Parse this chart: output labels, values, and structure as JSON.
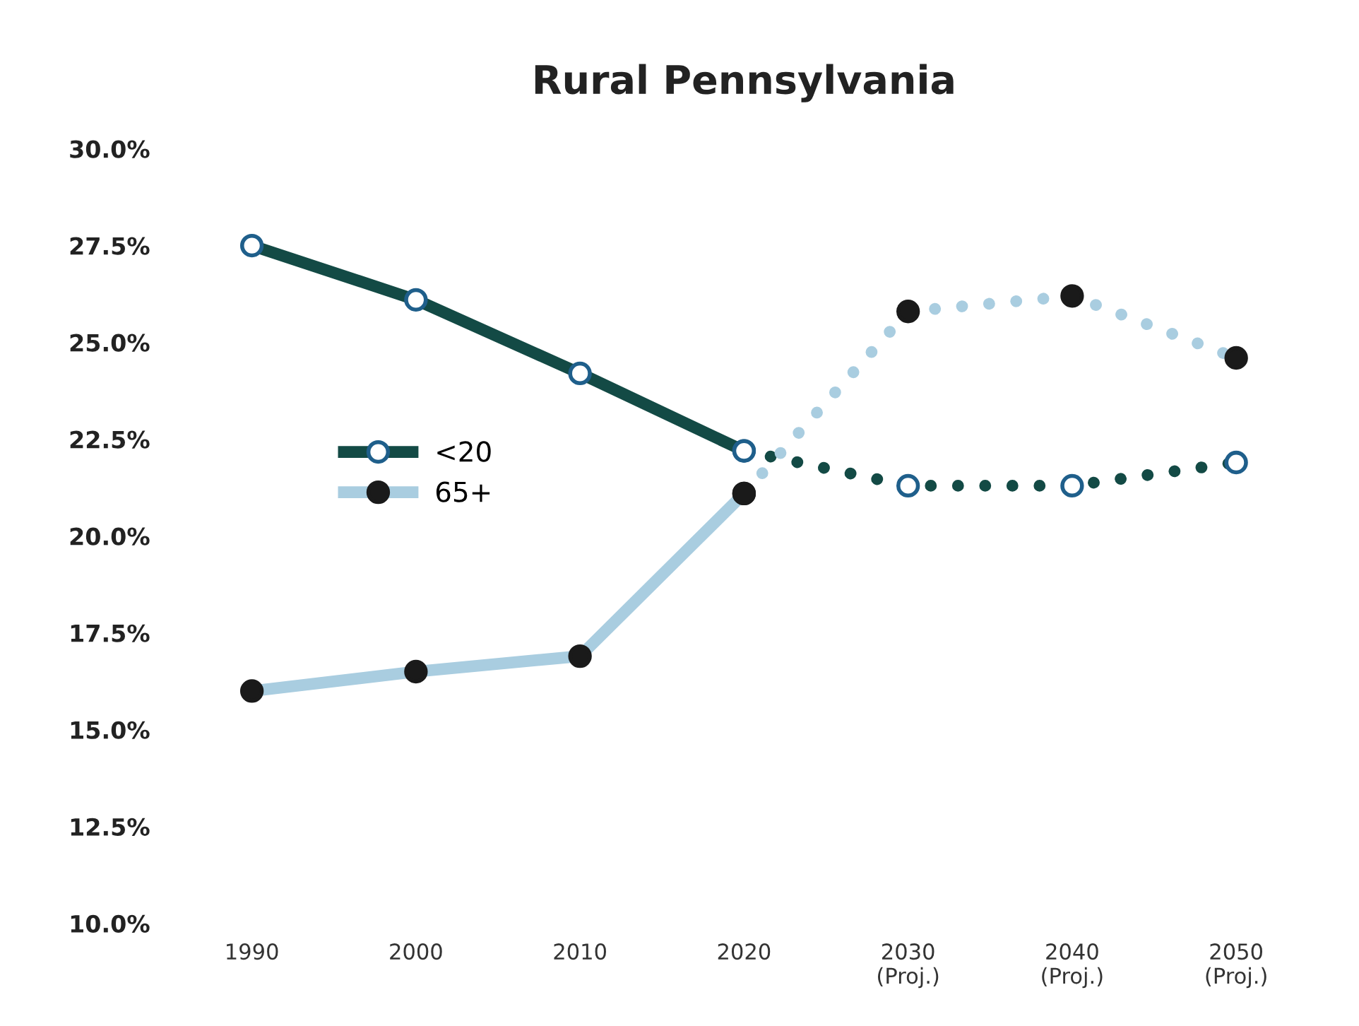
{
  "chart_data": {
    "type": "line",
    "title": "Rural Pennsylvania",
    "categories": [
      "1990",
      "2000",
      "2010",
      "2020",
      "2030\n(Proj.)",
      "2040\n(Proj.)",
      "2050\n(Proj.)"
    ],
    "series": [
      {
        "name": "<20",
        "color": "#134a45",
        "line_style": "solid",
        "values": [
          27.5,
          26.1,
          24.2,
          22.2,
          null,
          null,
          null
        ]
      },
      {
        "name": "65+",
        "color": "#a9cde0",
        "line_style": "solid",
        "values": [
          16.0,
          16.5,
          16.9,
          21.1,
          null,
          null,
          null
        ]
      },
      {
        "color": "#134a45",
        "line_style": "dotted",
        "values": [
          null,
          null,
          null,
          22.2,
          21.3,
          21.3,
          21.9
        ]
      },
      {
        "color": "#a9cde0",
        "line_style": "dotted",
        "values": [
          null,
          null,
          null,
          21.1,
          25.8,
          26.2,
          24.6
        ]
      }
    ],
    "ylim": [
      10,
      30
    ],
    "yticks": [
      {
        "value": 10,
        "label": "10.0%"
      },
      {
        "value": 12.5,
        "label": "12.5%"
      },
      {
        "value": 15,
        "label": "15.0%"
      },
      {
        "value": 17.5,
        "label": "17.5%"
      },
      {
        "value": 20,
        "label": "20.0%"
      },
      {
        "value": 22.5,
        "label": "22.5%"
      },
      {
        "value": 25,
        "label": "25.0%"
      },
      {
        "value": 27.5,
        "label": "27.5%"
      },
      {
        "value": 30,
        "label": "30.0%"
      }
    ],
    "marker": "circle",
    "legend": "left"
  }
}
